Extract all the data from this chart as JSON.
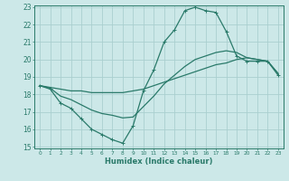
{
  "bg_color": "#cce8e8",
  "grid_color": "#aacfcf",
  "line_color": "#2a7a6a",
  "xlabel": "Humidex (Indice chaleur)",
  "xlim": [
    -0.5,
    23.5
  ],
  "ylim": [
    15,
    23
  ],
  "yticks": [
    15,
    16,
    17,
    18,
    19,
    20,
    21,
    22,
    23
  ],
  "xticks": [
    0,
    1,
    2,
    3,
    4,
    5,
    6,
    7,
    8,
    9,
    10,
    11,
    12,
    13,
    14,
    15,
    16,
    17,
    18,
    19,
    20,
    21,
    22,
    23
  ],
  "series": [
    {
      "x": [
        0,
        1,
        2,
        3,
        4,
        5,
        6,
        7,
        8,
        9,
        10,
        11,
        12,
        13,
        14,
        15,
        16,
        17,
        18,
        19,
        20,
        21,
        22,
        23
      ],
      "y": [
        18.5,
        18.3,
        17.5,
        17.2,
        16.6,
        16.0,
        15.7,
        15.4,
        15.2,
        16.2,
        18.2,
        19.4,
        21.0,
        21.7,
        22.8,
        23.0,
        22.8,
        22.7,
        21.6,
        20.2,
        19.9,
        19.9,
        19.9,
        19.1
      ],
      "marker": "+"
    },
    {
      "x": [
        0,
        1,
        2,
        3,
        4,
        5,
        6,
        7,
        8,
        9,
        10,
        11,
        12,
        13,
        14,
        15,
        16,
        17,
        18,
        19,
        20,
        21,
        22,
        23
      ],
      "y": [
        18.5,
        18.4,
        18.3,
        18.2,
        18.2,
        18.1,
        18.1,
        18.1,
        18.1,
        18.2,
        18.3,
        18.5,
        18.7,
        18.9,
        19.1,
        19.3,
        19.5,
        19.7,
        19.8,
        20.0,
        20.1,
        20.0,
        19.9,
        19.2
      ],
      "marker": null
    },
    {
      "x": [
        0,
        1,
        2,
        3,
        4,
        5,
        6,
        7,
        8,
        9,
        10,
        11,
        12,
        13,
        14,
        15,
        16,
        17,
        18,
        19,
        20,
        21,
        22,
        23
      ],
      "y": [
        18.5,
        18.35,
        17.9,
        17.7,
        17.4,
        17.1,
        16.9,
        16.8,
        16.65,
        16.7,
        17.3,
        17.9,
        18.6,
        19.1,
        19.6,
        20.0,
        20.2,
        20.4,
        20.5,
        20.4,
        20.1,
        20.0,
        19.9,
        19.2
      ],
      "marker": null
    }
  ]
}
